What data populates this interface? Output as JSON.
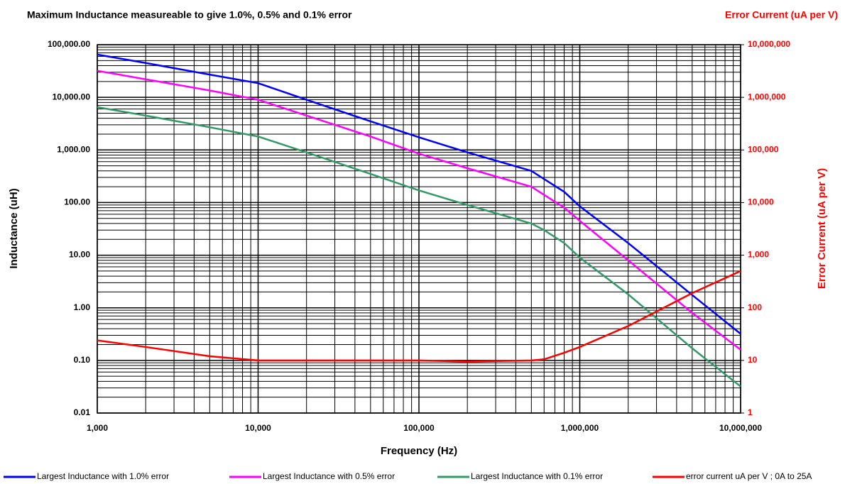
{
  "chart_data": {
    "type": "line",
    "title": "Maximum Inductance measureable to give 1.0%, 0.5% and 0.1% error",
    "xlabel": "Frequency (Hz)",
    "ylabel": "Inductance (uH)",
    "y2title": "Error Current (uA per V)",
    "y2label": "Error Current (uA per V)",
    "xscale": "log",
    "yscale": "log",
    "grid": true,
    "legend": "bottom",
    "x": [
      1000,
      2000,
      5000,
      10000,
      20000,
      50000,
      100000,
      200000,
      500000,
      600000,
      800000,
      1000000,
      2000000,
      5000000,
      10000000
    ],
    "xlim": [
      1000,
      10000000
    ],
    "xticks": [
      {
        "value": 1000,
        "label": "1,000"
      },
      {
        "value": 10000,
        "label": "10,000"
      },
      {
        "value": 100000,
        "label": "100,000"
      },
      {
        "value": 1000000,
        "label": "1,000,000"
      },
      {
        "value": 10000000,
        "label": "10,000,000"
      }
    ],
    "ylim": [
      0.01,
      100000
    ],
    "yticks": [
      {
        "value": 0.01,
        "label": "0.01"
      },
      {
        "value": 0.1,
        "label": "0.10"
      },
      {
        "value": 1,
        "label": "1.00"
      },
      {
        "value": 10,
        "label": "10.00"
      },
      {
        "value": 100,
        "label": "100.00"
      },
      {
        "value": 1000,
        "label": "1,000.00"
      },
      {
        "value": 10000,
        "label": "10,000.00"
      },
      {
        "value": 100000,
        "label": "100,000.00"
      }
    ],
    "y2lim": [
      1,
      10000000
    ],
    "y2ticks": [
      1,
      10,
      100,
      {
        "value": 1000,
        "label": "1,000"
      },
      {
        "value": 10000,
        "label": "10,000"
      },
      {
        "value": 100000,
        "label": "100,000"
      },
      {
        "value": 1000000,
        "label": "1,000,000"
      },
      {
        "value": 10000000,
        "label": "10,000,000"
      }
    ],
    "series": [
      {
        "name": "Largest Inductance with 1.0% error",
        "color": "#0000ff",
        "values": [
          65000,
          45000,
          27000,
          18600,
          9000,
          3500,
          1740,
          900,
          400,
          280,
          160,
          85,
          17,
          1.75,
          0.32
        ]
      },
      {
        "name": "Largest Inductance with 0.5% error",
        "color": "#ff00ff",
        "values": [
          32000,
          22000,
          13500,
          9000,
          4500,
          1800,
          850,
          450,
          200,
          140,
          80,
          45,
          8,
          0.8,
          0.16
        ]
      },
      {
        "name": "Largest Inductance with 0.1% error",
        "color": "#339966",
        "values": [
          6500,
          4500,
          2700,
          1800,
          900,
          350,
          170,
          90,
          40,
          30,
          17,
          9,
          1.8,
          0.17,
          0.032
        ]
      },
      {
        "name": "error current uA per V ; 0A to 25A",
        "color": "#ff0000",
        "axis": "y2",
        "values": [
          24,
          18,
          12,
          10,
          10,
          10,
          10,
          9.5,
          10,
          10.5,
          14,
          18,
          45,
          190,
          500
        ]
      }
    ]
  }
}
